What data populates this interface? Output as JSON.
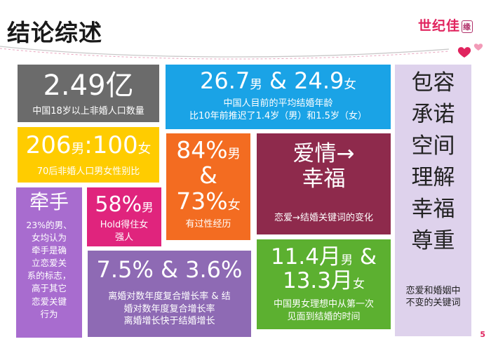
{
  "header": {
    "title": "结论综述",
    "brand": "世纪佳",
    "brand_seal": "缘",
    "page_number": "5"
  },
  "tiles": {
    "marriage_population": {
      "value": "2.49亿",
      "caption": "中国18岁以上非婚人口数量"
    },
    "marriage_age": {
      "male_value": "26.7",
      "male_unit": "男",
      "amp": "&",
      "female_value": "24.9",
      "female_unit": "女",
      "caption_line1": "中国人目前的平均结婚年龄",
      "caption_line2": "比10年前推迟了1.4岁（男）和1.5岁（女）"
    },
    "sex_ratio": {
      "male_value": "206",
      "male_unit": "男",
      "colon": ":",
      "female_value": "100",
      "female_unit": "女",
      "caption": "70后非婚人口男女性别比"
    },
    "experience": {
      "male_value": "84%",
      "male_unit": "男",
      "amp": "&",
      "female_value": "73%",
      "female_unit": "女",
      "caption": "有过性经历"
    },
    "keyword_shift": {
      "line1": "爱情→",
      "line2": "幸福",
      "caption": "恋爱→结婚关键词的变化"
    },
    "hold_hands": {
      "title": "牵手",
      "lines": [
        "23%的男、",
        "女均认为",
        "牵手是确",
        "立恋爱关",
        "系的标志，",
        "高于其它",
        "恋爱关键",
        "行为"
      ]
    },
    "strong_woman": {
      "value": "58%",
      "unit": "男",
      "caption_line1": "Hold得住女",
      "caption_line2": "强人"
    },
    "divorce_growth": {
      "value": "7.5% & 3.6%",
      "lines": [
        "离婚对数年度复合增长率 & 结",
        "婚对数年度复合增长率",
        "离婚增长快于结婚增长"
      ]
    },
    "meet_to_marry": {
      "value1": "11.4月",
      "unit1": "男",
      "amp": "&",
      "value2": "13.3月",
      "unit2": "女",
      "caption_line1": "中国男女理想中从第一次",
      "caption_line2": "见面到结婚的时间"
    },
    "keywords": {
      "words": [
        "包容",
        "承诺",
        "空间",
        "理解",
        "幸福",
        "尊重"
      ],
      "caption_line1": "恋爱和婚姻中",
      "caption_line2": "不变的关键词"
    }
  }
}
